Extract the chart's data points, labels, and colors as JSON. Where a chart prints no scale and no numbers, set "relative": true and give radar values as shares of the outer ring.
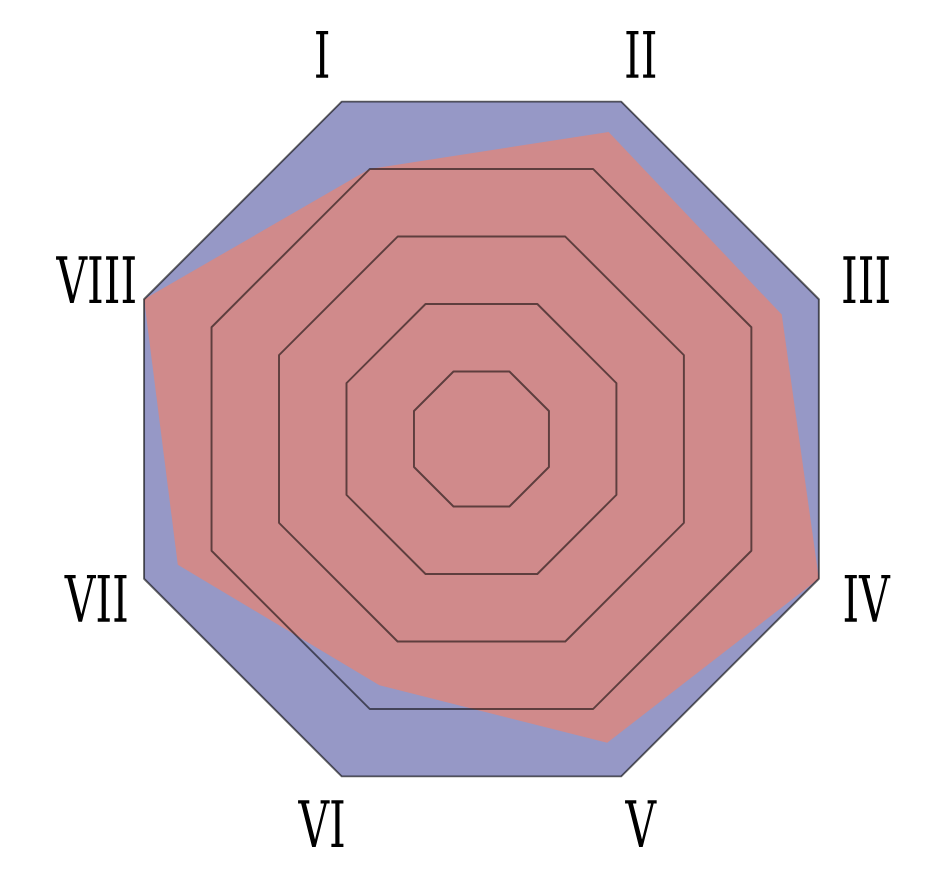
{
  "chart_data": {
    "type": "radar",
    "relative": true,
    "grid": true,
    "categories": [
      "I",
      "II",
      "III",
      "IV",
      "V",
      "VI",
      "VII",
      "VIII"
    ],
    "series": [
      {
        "color": "#d08a8b",
        "values": [
          0.8,
          0.91,
          0.89,
          1,
          0.9,
          0.73,
          0.9,
          1
        ]
      }
    ]
  }
}
